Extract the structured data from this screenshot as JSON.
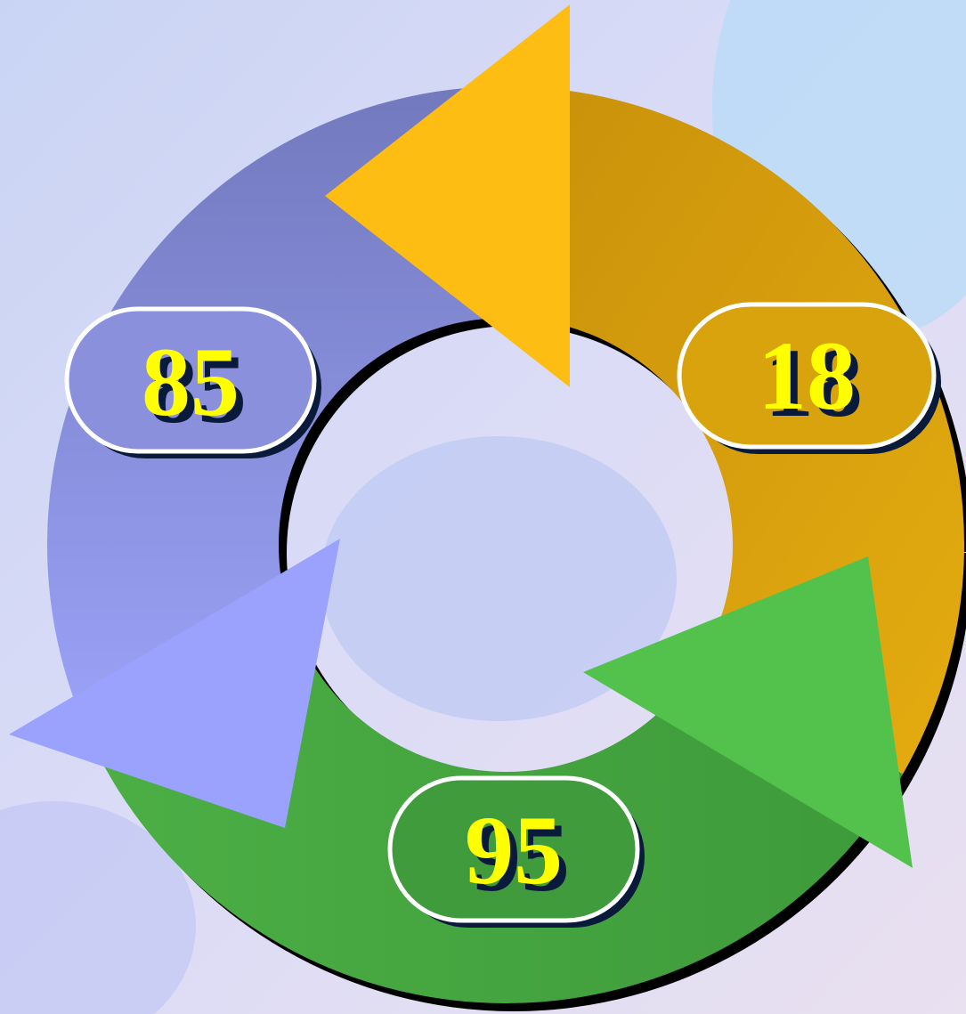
{
  "nodes": [
    {
      "label": 85
    },
    {
      "label": 18
    },
    {
      "label": 95
    }
  ]
}
